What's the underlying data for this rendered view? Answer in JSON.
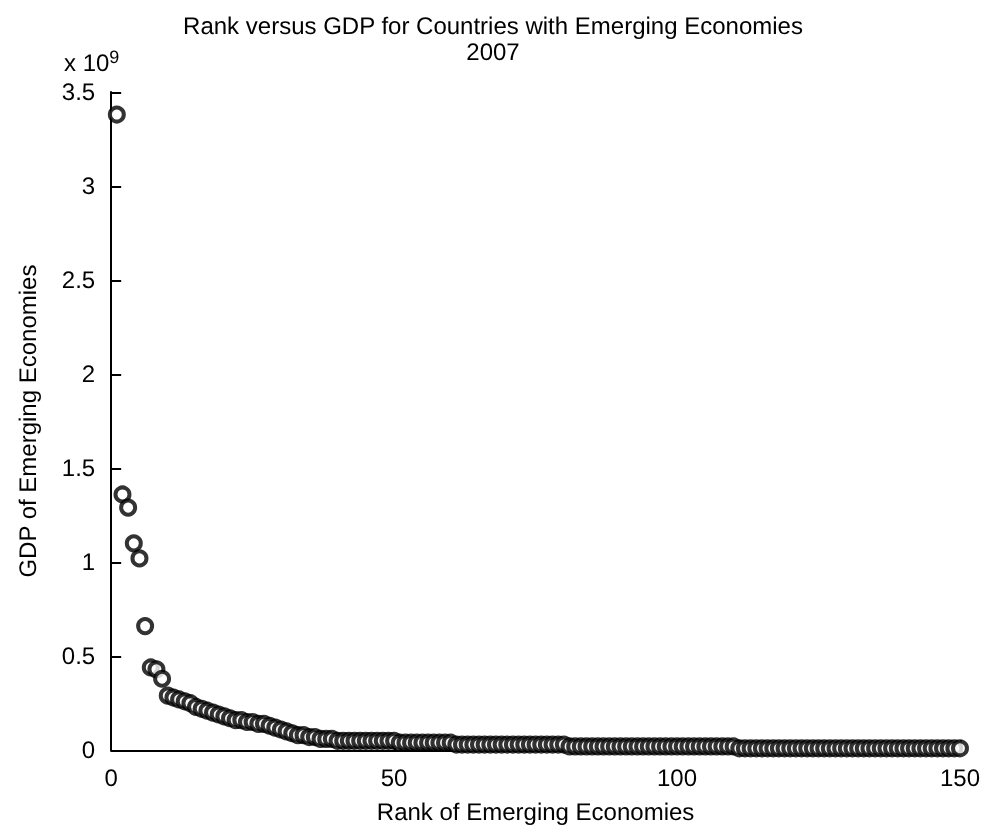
{
  "chart_data": {
    "type": "scatter",
    "title": "Rank versus GDP for Countries with Emerging Economies",
    "subtitle": "2007",
    "xlabel": "Rank of Emerging Economies",
    "ylabel": "GDP of Emerging Economies",
    "annotations": [
      "x 10$^{9}$"
    ],
    "x": [
      1,
      2,
      3,
      4,
      5,
      6,
      7,
      8,
      9,
      10,
      11,
      12,
      13,
      14,
      15,
      16,
      17,
      18,
      19,
      20,
      21,
      22,
      23,
      24,
      25,
      26,
      27,
      28,
      29,
      30,
      31,
      32,
      33,
      34,
      35,
      36,
      37,
      38,
      39,
      40,
      41,
      42,
      43,
      44,
      45,
      46,
      47,
      48,
      49,
      50,
      51,
      52,
      53,
      54,
      55,
      56,
      57,
      58,
      59,
      60,
      61,
      62,
      63,
      64,
      65,
      66,
      67,
      68,
      69,
      70,
      71,
      72,
      73,
      74,
      75,
      76,
      77,
      78,
      79,
      80,
      81,
      82,
      83,
      84,
      85,
      86,
      87,
      88,
      89,
      90,
      91,
      92,
      93,
      94,
      95,
      96,
      97,
      98,
      99,
      100,
      101,
      102,
      103,
      104,
      105,
      106,
      107,
      108,
      109,
      110,
      111,
      112,
      113,
      114,
      115,
      116,
      117,
      118,
      119,
      120,
      121,
      122,
      123,
      124,
      125,
      126,
      127,
      128,
      129,
      130,
      131,
      132,
      133,
      134,
      135,
      136,
      137,
      138,
      139,
      140,
      141,
      142,
      143,
      144,
      145,
      146,
      147,
      148,
      149,
      150
    ],
    "series": [
      {
        "color": "#000000",
        "values": [
          3.38,
          1.36,
          1.29,
          1.1,
          1.02,
          0.66,
          0.44,
          0.43,
          0.38,
          0.29,
          0.28,
          0.27,
          0.26,
          0.25,
          0.23,
          0.22,
          0.21,
          0.2,
          0.19,
          0.18,
          0.17,
          0.16,
          0.16,
          0.15,
          0.15,
          0.14,
          0.14,
          0.13,
          0.12,
          0.11,
          0.1,
          0.09,
          0.08,
          0.08,
          0.07,
          0.07,
          0.06,
          0.06,
          0.06,
          0.05,
          0.05,
          0.05,
          0.05,
          0.05,
          0.05,
          0.05,
          0.05,
          0.05,
          0.05,
          0.05,
          0.04,
          0.04,
          0.04,
          0.04,
          0.04,
          0.04,
          0.04,
          0.04,
          0.04,
          0.04,
          0.03,
          0.03,
          0.03,
          0.03,
          0.03,
          0.03,
          0.03,
          0.03,
          0.03,
          0.03,
          0.03,
          0.03,
          0.03,
          0.03,
          0.03,
          0.03,
          0.03,
          0.03,
          0.03,
          0.03,
          0.02,
          0.02,
          0.02,
          0.02,
          0.02,
          0.02,
          0.02,
          0.02,
          0.02,
          0.02,
          0.02,
          0.02,
          0.02,
          0.02,
          0.02,
          0.02,
          0.02,
          0.02,
          0.02,
          0.02,
          0.02,
          0.02,
          0.02,
          0.02,
          0.02,
          0.02,
          0.02,
          0.02,
          0.02,
          0.02,
          0.01,
          0.01,
          0.01,
          0.01,
          0.01,
          0.01,
          0.01,
          0.01,
          0.01,
          0.01,
          0.01,
          0.01,
          0.01,
          0.01,
          0.01,
          0.01,
          0.01,
          0.01,
          0.01,
          0.01,
          0.01,
          0.01,
          0.01,
          0.01,
          0.01,
          0.01,
          0.01,
          0.01,
          0.01,
          0.01,
          0.01,
          0.01,
          0.01,
          0.01,
          0.01,
          0.01,
          0.01,
          0.01,
          0.01,
          0.01
        ]
      }
    ],
    "xlim": [
      0,
      150
    ],
    "xticks": [
      0,
      50,
      100,
      150
    ],
    "ylim": [
      0,
      3.5
    ],
    "yticks": [
      0,
      0.5,
      1,
      1.5,
      2,
      2.5,
      3,
      3.5
    ],
    "grid": false,
    "marker": "circle"
  }
}
